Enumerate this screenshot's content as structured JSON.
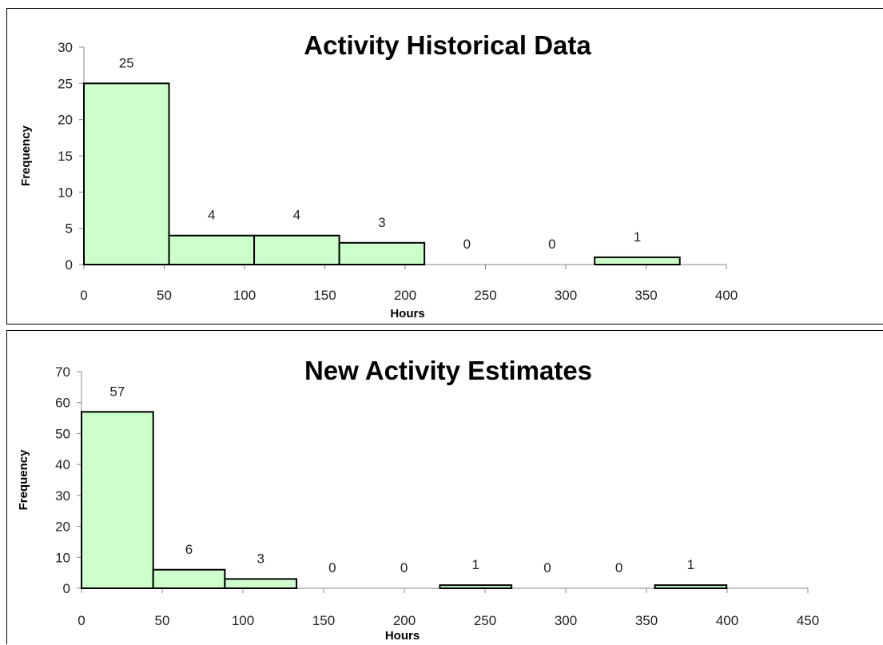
{
  "chart_data": [
    {
      "type": "bar",
      "title": "Activity Historical Data",
      "xlabel": "Hours",
      "ylabel": "Frequency",
      "bin_edges": [
        0,
        53,
        106,
        159,
        212,
        265,
        318,
        371
      ],
      "values": [
        25,
        4,
        4,
        3,
        0,
        0,
        1
      ],
      "xlim": [
        0,
        400
      ],
      "ylim": [
        0,
        30
      ],
      "xticks": [
        0,
        50,
        100,
        150,
        200,
        250,
        300,
        350,
        400
      ],
      "yticks": [
        0,
        5,
        10,
        15,
        20,
        25,
        30
      ],
      "bar_color": "#ccffcc",
      "grid": false,
      "legend": "none"
    },
    {
      "type": "bar",
      "title": "New Activity Estimates",
      "xlabel": "Hours",
      "ylabel": "Frequency",
      "bin_edges": [
        0,
        44.4,
        88.8,
        133.2,
        177.6,
        222,
        266.4,
        310.8,
        355.2,
        399.6
      ],
      "values": [
        57,
        6,
        3,
        0,
        0,
        1,
        0,
        0,
        1
      ],
      "xlim": [
        0,
        450
      ],
      "ylim": [
        0,
        70
      ],
      "xticks": [
        0,
        50,
        100,
        150,
        200,
        250,
        300,
        350,
        400,
        450
      ],
      "yticks": [
        0,
        10,
        20,
        30,
        40,
        50,
        60,
        70
      ],
      "bar_color": "#ccffcc",
      "grid": false,
      "legend": "none"
    }
  ]
}
